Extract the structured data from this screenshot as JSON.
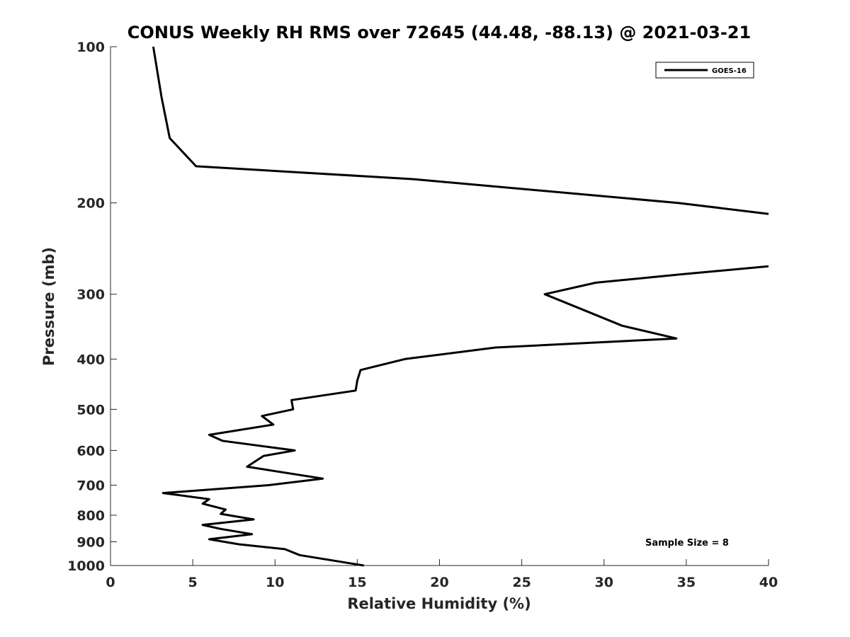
{
  "chart_data": {
    "type": "line",
    "title": "CONUS Weekly RH RMS over 72645 (44.48, -88.13) @ 2021-03-21",
    "xlabel": "Relative Humidity (%)",
    "ylabel": "Pressure (mb)",
    "xlim": [
      0,
      40
    ],
    "ylim": [
      100,
      1000
    ],
    "y_scale": "log",
    "y_reversed": true,
    "x_ticks": [
      "0",
      "5",
      "10",
      "15",
      "20",
      "25",
      "30",
      "35",
      "40"
    ],
    "y_ticks": [
      "100",
      "200",
      "300",
      "400",
      "500",
      "600",
      "700",
      "800",
      "900",
      "1000"
    ],
    "legend": {
      "position": "top-right",
      "entries": [
        "GOES-16"
      ]
    },
    "annotation": "Sample Size = 8",
    "grid": false,
    "series": [
      {
        "name": "GOES-16",
        "color": "#000000",
        "segments": [
          {
            "x": [
              2.6,
              3.1,
              3.6,
              5.2,
              18.4,
              34.5,
              40.0
            ],
            "y": [
              100,
              125,
              150,
              170,
              180,
              200,
              210
            ]
          },
          {
            "x": [
              40.0,
              34.5,
              29.5,
              26.4,
              29.1,
              31.1,
              34.4,
              23.4,
              17.9,
              15.2,
              15.0,
              14.9,
              11.0,
              11.1,
              9.2,
              9.9,
              6.0,
              6.8,
              11.2,
              9.3,
              8.3,
              12.9,
              9.6,
              3.2,
              6.0,
              5.6,
              7.0,
              6.7,
              8.7,
              5.6,
              6.7,
              8.6,
              6.0,
              7.8,
              10.6,
              11.5,
              15.4
            ],
            "y": [
              265,
              275,
              285,
              300,
              325,
              345,
              365,
              380,
              400,
              420,
              440,
              460,
              480,
              500,
              515,
              535,
              560,
              575,
              600,
              615,
              645,
              680,
              700,
              725,
              745,
              760,
              780,
              795,
              815,
              835,
              850,
              870,
              890,
              910,
              930,
              955,
              1000
            ]
          }
        ]
      }
    ]
  }
}
